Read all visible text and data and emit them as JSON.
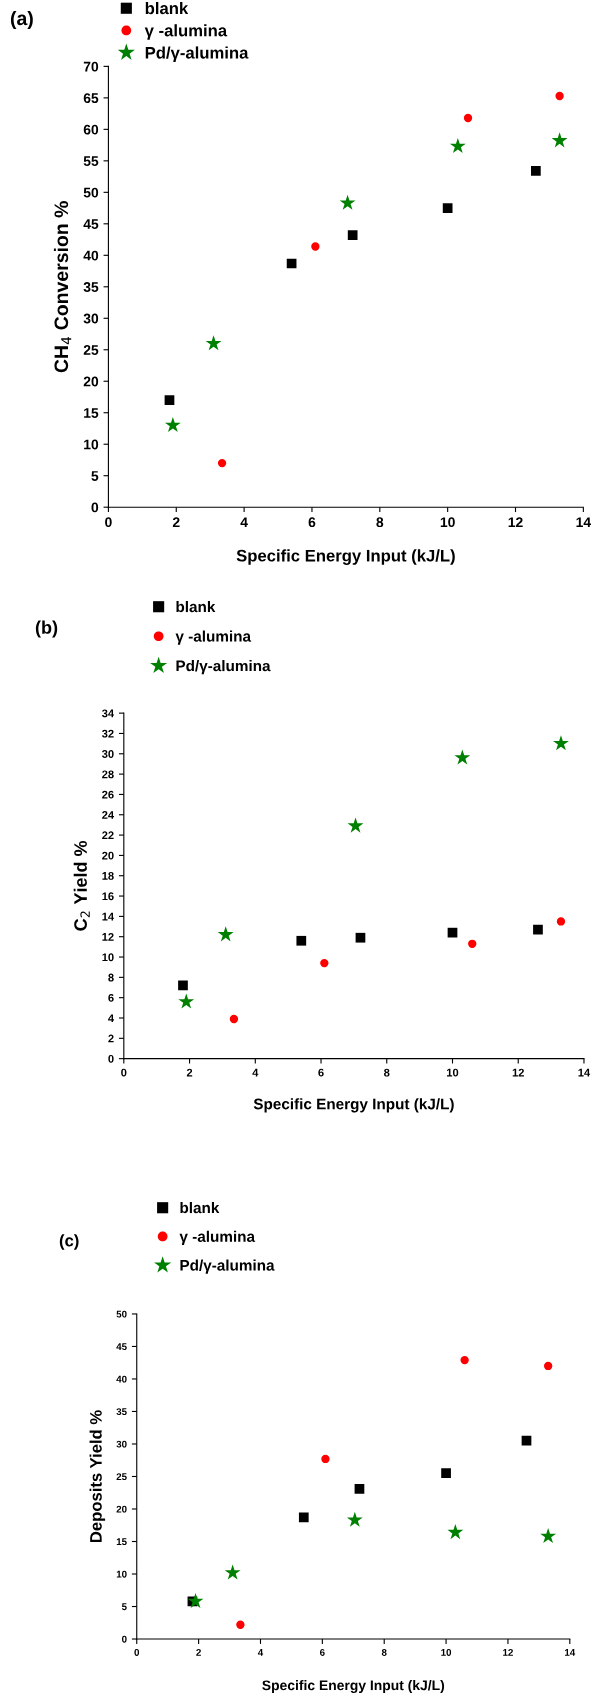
{
  "chart_data": [
    {
      "type": "scatter",
      "title": "(a)",
      "xlabel": "Specific Energy Input (kJ/L)",
      "ylabel": "CH$_{4}$ Conversion %",
      "xlim": [
        0,
        14
      ],
      "xticks": [
        0,
        2,
        4,
        6,
        8,
        10,
        12,
        14
      ],
      "ylim": [
        0,
        70
      ],
      "yticks": [
        0,
        5,
        10,
        15,
        20,
        25,
        30,
        35,
        40,
        45,
        50,
        55,
        60,
        65,
        70
      ],
      "grid": false,
      "legend": "top left",
      "series": [
        {
          "name": "blank",
          "color": "#000000",
          "marker": "square",
          "x": [
            1.8,
            5.4,
            7.2,
            10,
            12.6
          ],
          "values": [
            17,
            38.7,
            43.2,
            47.5,
            53.4
          ]
        },
        {
          "name": "γ -alumina",
          "color": "#ff0000",
          "marker": "circle",
          "x": [
            3.35,
            6.1,
            10.6,
            13.3
          ],
          "values": [
            7,
            41.4,
            61.8,
            65.3
          ]
        },
        {
          "name": "Pd/γ-alumina",
          "color": "#008000",
          "marker": "star",
          "x": [
            1.9,
            3.1,
            7.05,
            10.3,
            13.3
          ],
          "values": [
            13,
            26,
            48.3,
            57.3,
            58.2
          ]
        }
      ]
    },
    {
      "type": "scatter",
      "title": "(b)",
      "xlabel": "Specific Energy Input (kJ/L)",
      "ylabel": "C$_{2}$ Yield %",
      "xlim": [
        0,
        14
      ],
      "xticks": [
        0,
        2,
        4,
        6,
        8,
        10,
        12,
        14
      ],
      "ylim": [
        0,
        34
      ],
      "yticks": [
        0,
        2,
        4,
        6,
        8,
        10,
        12,
        14,
        16,
        18,
        20,
        22,
        24,
        26,
        28,
        30,
        32,
        34
      ],
      "grid": false,
      "legend": "top left",
      "series": [
        {
          "name": "blank",
          "color": "#000000",
          "marker": "square",
          "x": [
            1.8,
            5.4,
            7.2,
            10,
            12.6
          ],
          "values": [
            7.2,
            11.6,
            11.9,
            12.4,
            12.7
          ]
        },
        {
          "name": "γ -alumina",
          "color": "#ff0000",
          "marker": "circle",
          "x": [
            3.35,
            6.1,
            10.6,
            13.3
          ],
          "values": [
            3.9,
            9.4,
            11.3,
            13.5
          ]
        },
        {
          "name": "Pd/γ-alumina",
          "color": "#008000",
          "marker": "star",
          "x": [
            1.9,
            3.1,
            7.05,
            10.3,
            13.3
          ],
          "values": [
            5.6,
            12.2,
            22.9,
            29.6,
            31
          ]
        }
      ]
    },
    {
      "type": "scatter",
      "title": "(c)",
      "xlabel": "Specific Energy Input (kJ/L)",
      "ylabel": "Deposits Yield %",
      "xlim": [
        0,
        14
      ],
      "xticks": [
        0,
        2,
        4,
        6,
        8,
        10,
        12,
        14
      ],
      "ylim": [
        0,
        50
      ],
      "yticks": [
        0,
        5,
        10,
        15,
        20,
        25,
        30,
        35,
        40,
        45,
        50
      ],
      "grid": false,
      "legend": "top left",
      "series": [
        {
          "name": "blank",
          "color": "#000000",
          "marker": "square",
          "x": [
            1.8,
            5.4,
            7.2,
            10,
            12.6
          ],
          "values": [
            5.8,
            18.7,
            23.1,
            25.5,
            30.5
          ]
        },
        {
          "name": "γ -alumina",
          "color": "#ff0000",
          "marker": "circle",
          "x": [
            3.35,
            6.1,
            10.6,
            13.3
          ],
          "values": [
            2.2,
            27.7,
            42.9,
            42
          ]
        },
        {
          "name": "Pd/γ-alumina",
          "color": "#008000",
          "marker": "star",
          "x": [
            1.9,
            3.1,
            7.05,
            10.3,
            13.3
          ],
          "values": [
            5.8,
            10.2,
            18.3,
            16.4,
            15.8
          ]
        }
      ]
    }
  ]
}
